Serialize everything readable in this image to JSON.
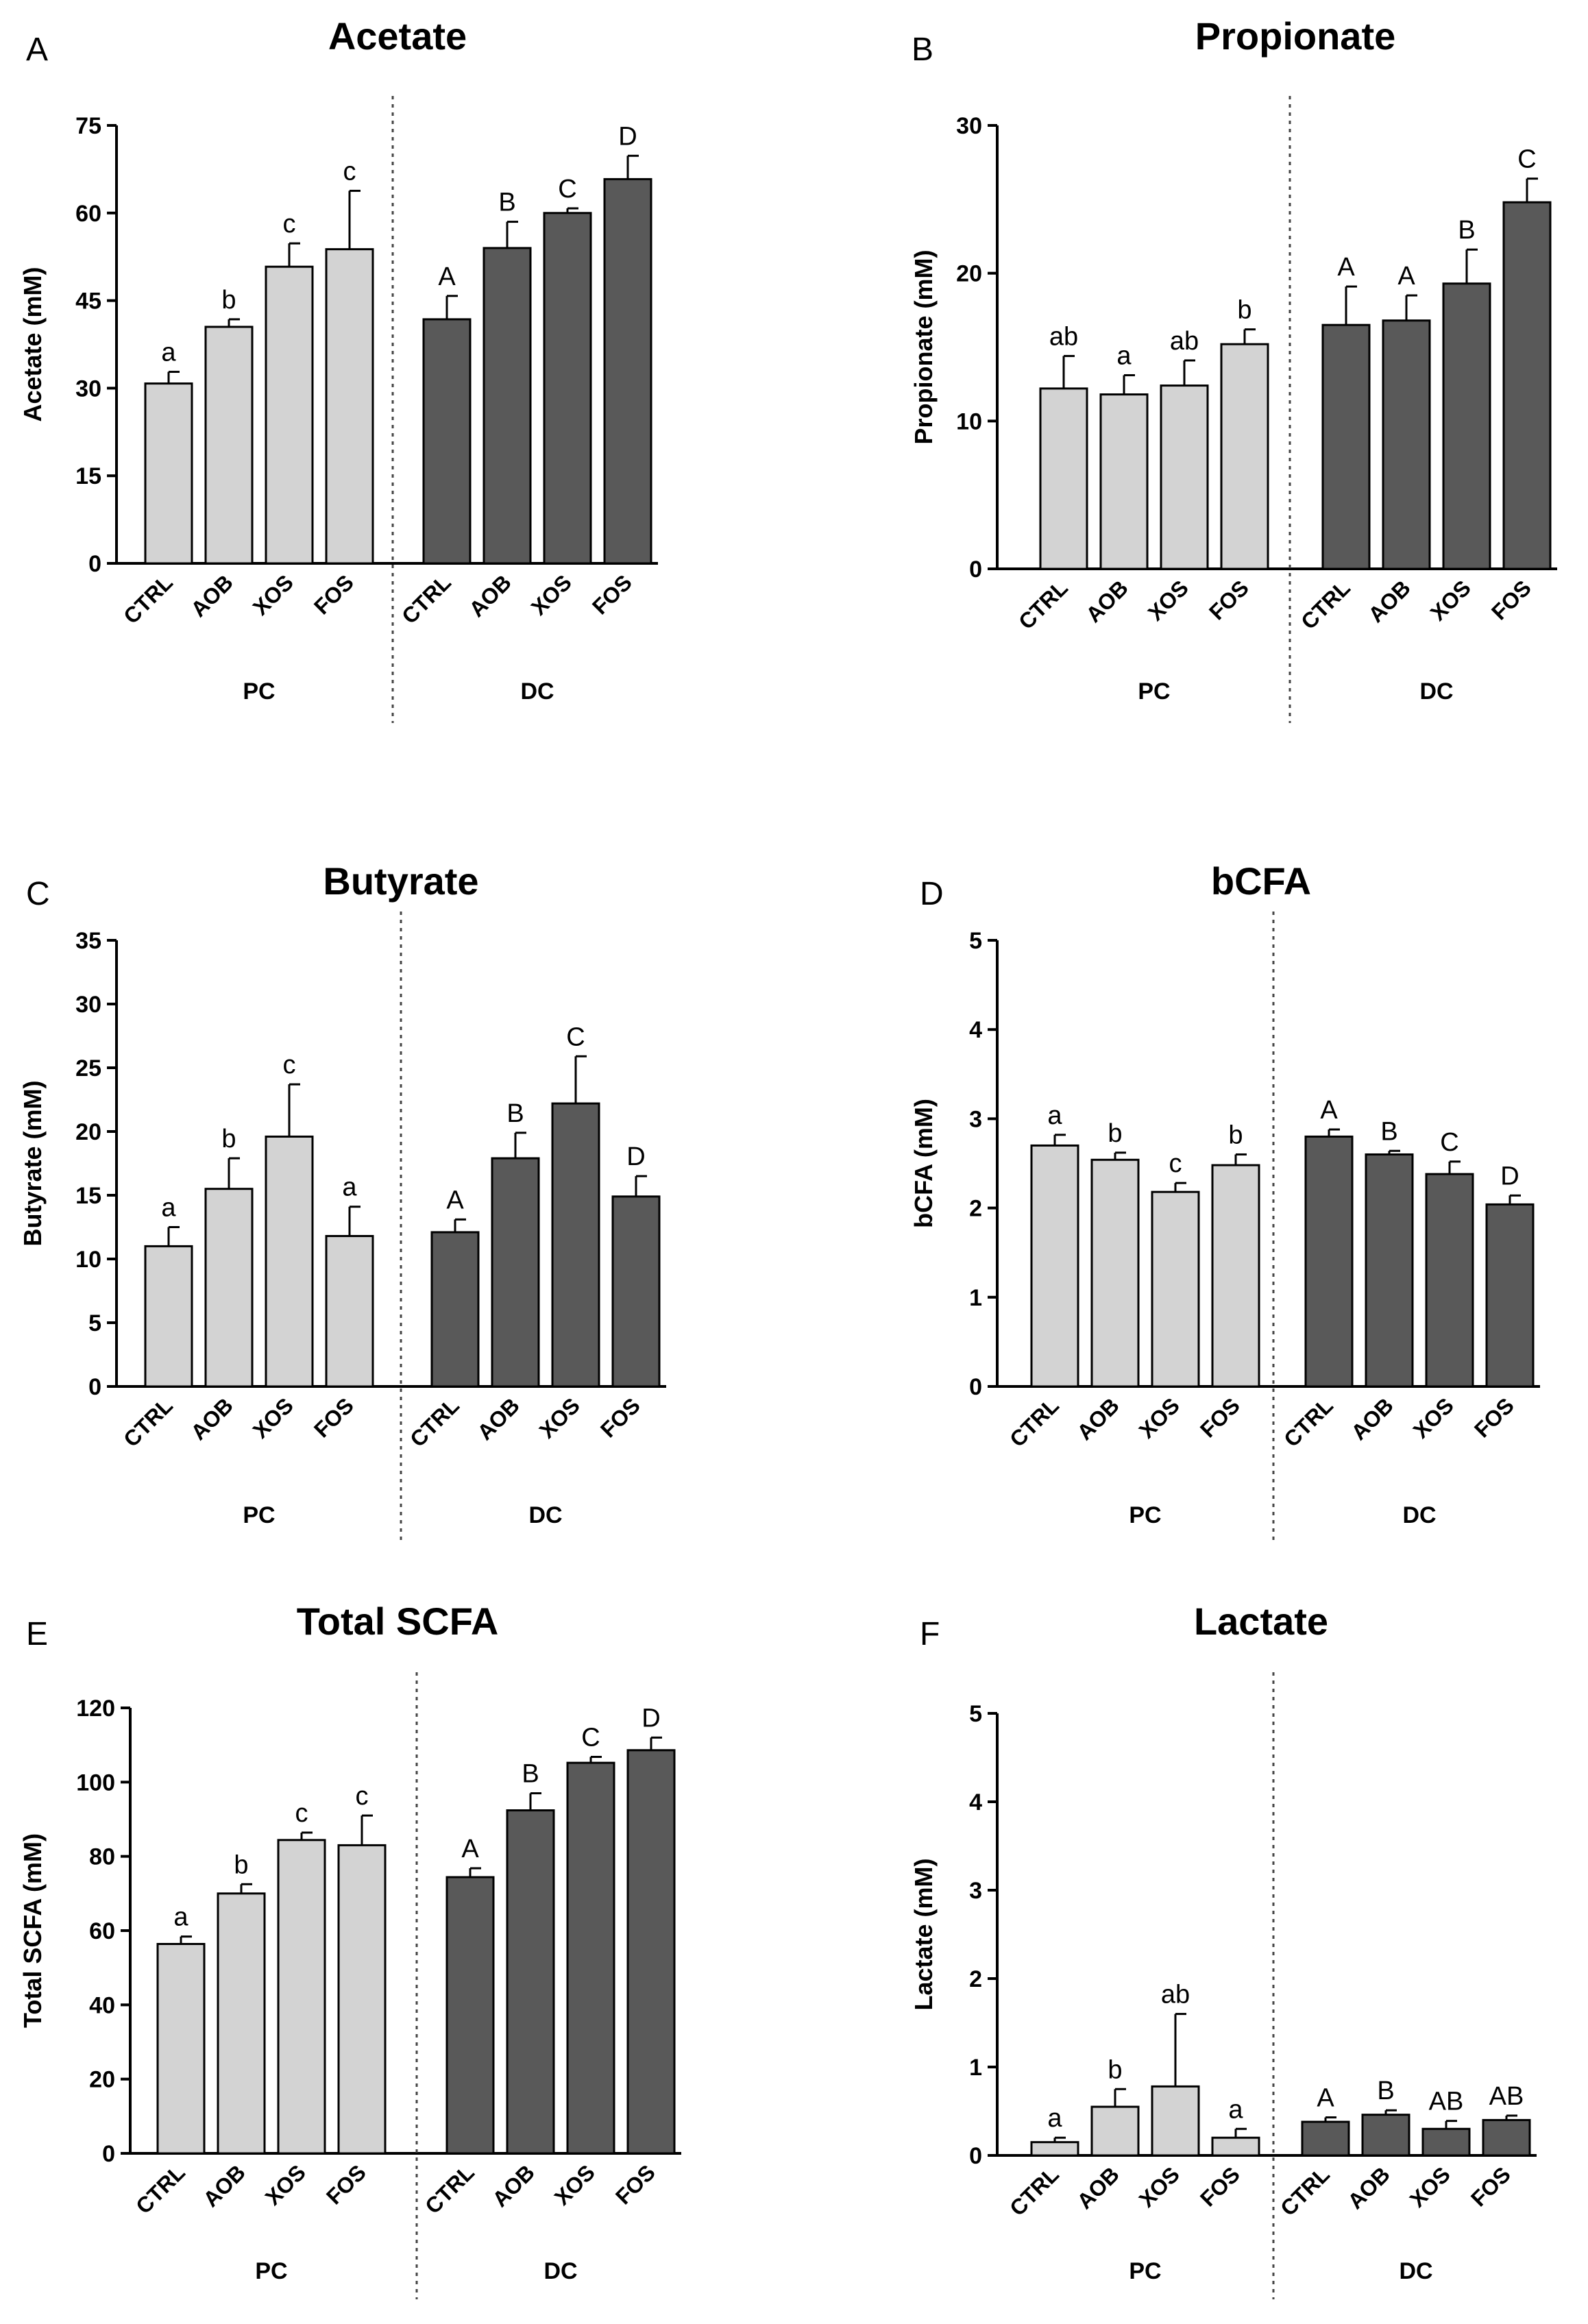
{
  "chart_data": [
    {
      "panel": "A",
      "type": "bar",
      "title": "Acetate",
      "ylabel": "Acetate (mM)",
      "ylim": [
        0,
        75
      ],
      "yticks": [
        0,
        15,
        30,
        45,
        60,
        75
      ],
      "groups": [
        "PC",
        "DC"
      ],
      "categories": [
        "CTRL",
        "AOB",
        "XOS",
        "FOS"
      ],
      "series": [
        {
          "name": "PC",
          "color": "#d3d3d3",
          "values": [
            30.8,
            40.5,
            50.8,
            53.8
          ],
          "errors": [
            2.0,
            1.3,
            4.0,
            10.0
          ],
          "letters": [
            "a",
            "b",
            "c",
            "c"
          ]
        },
        {
          "name": "DC",
          "color": "#595959",
          "values": [
            41.8,
            54.0,
            60.0,
            65.8
          ],
          "errors": [
            4.0,
            4.5,
            0.8,
            4.0
          ],
          "letters": [
            "A",
            "B",
            "C",
            "D"
          ]
        }
      ]
    },
    {
      "panel": "B",
      "type": "bar",
      "title": "Propionate",
      "ylabel": "Propionate (mM)",
      "ylim": [
        0,
        30
      ],
      "yticks": [
        0,
        10,
        20,
        30
      ],
      "groups": [
        "PC",
        "DC"
      ],
      "categories": [
        "CTRL",
        "AOB",
        "XOS",
        "FOS"
      ],
      "series": [
        {
          "name": "PC",
          "color": "#d3d3d3",
          "values": [
            12.2,
            11.8,
            12.4,
            15.2
          ],
          "errors": [
            2.2,
            1.3,
            1.7,
            1.0
          ],
          "letters": [
            "ab",
            "a",
            "ab",
            "b"
          ]
        },
        {
          "name": "DC",
          "color": "#595959",
          "values": [
            16.5,
            16.8,
            19.3,
            24.8
          ],
          "errors": [
            2.6,
            1.7,
            2.3,
            1.6
          ],
          "letters": [
            "A",
            "A",
            "B",
            "C"
          ]
        }
      ]
    },
    {
      "panel": "C",
      "type": "bar",
      "title": "Butyrate",
      "ylabel": "Butyrate (mM)",
      "ylim": [
        0,
        35
      ],
      "yticks": [
        0,
        5,
        10,
        15,
        20,
        25,
        30,
        35
      ],
      "groups": [
        "PC",
        "DC"
      ],
      "categories": [
        "CTRL",
        "AOB",
        "XOS",
        "FOS"
      ],
      "series": [
        {
          "name": "PC",
          "color": "#d3d3d3",
          "values": [
            11.0,
            15.5,
            19.6,
            11.8
          ],
          "errors": [
            1.5,
            2.4,
            4.1,
            2.3
          ],
          "letters": [
            "a",
            "b",
            "c",
            "a"
          ]
        },
        {
          "name": "DC",
          "color": "#595959",
          "values": [
            12.1,
            17.9,
            22.2,
            14.9
          ],
          "errors": [
            1.0,
            2.0,
            3.7,
            1.6
          ],
          "letters": [
            "A",
            "B",
            "C",
            "D"
          ]
        }
      ]
    },
    {
      "panel": "D",
      "type": "bar",
      "title": "bCFA",
      "ylabel": "bCFA (mM)",
      "ylim": [
        0,
        5
      ],
      "yticks": [
        0,
        1,
        2,
        3,
        4,
        5
      ],
      "groups": [
        "PC",
        "DC"
      ],
      "categories": [
        "CTRL",
        "AOB",
        "XOS",
        "FOS"
      ],
      "series": [
        {
          "name": "PC",
          "color": "#d3d3d3",
          "values": [
            2.7,
            2.54,
            2.18,
            2.48
          ],
          "errors": [
            0.12,
            0.08,
            0.1,
            0.12
          ],
          "letters": [
            "a",
            "b",
            "c",
            "b"
          ]
        },
        {
          "name": "DC",
          "color": "#595959",
          "values": [
            2.8,
            2.6,
            2.38,
            2.04
          ],
          "errors": [
            0.08,
            0.04,
            0.14,
            0.1
          ],
          "letters": [
            "A",
            "B",
            "C",
            "D"
          ]
        }
      ]
    },
    {
      "panel": "E",
      "type": "bar",
      "title": "Total SCFA",
      "ylabel": "Total SCFA (mM)",
      "ylim": [
        0,
        120
      ],
      "yticks": [
        0,
        20,
        40,
        60,
        80,
        100,
        120
      ],
      "groups": [
        "PC",
        "DC"
      ],
      "categories": [
        "CTRL",
        "AOB",
        "XOS",
        "FOS"
      ],
      "series": [
        {
          "name": "PC",
          "color": "#d3d3d3",
          "values": [
            56.4,
            70.0,
            84.4,
            83.0
          ],
          "errors": [
            2.0,
            2.5,
            2.0,
            8.0
          ],
          "letters": [
            "a",
            "b",
            "c",
            "c"
          ]
        },
        {
          "name": "DC",
          "color": "#595959",
          "values": [
            74.4,
            92.4,
            105.2,
            108.6
          ],
          "errors": [
            2.4,
            4.6,
            1.6,
            3.4
          ],
          "letters": [
            "A",
            "B",
            "C",
            "D"
          ]
        }
      ]
    },
    {
      "panel": "F",
      "type": "bar",
      "title": "Lactate",
      "ylabel": "Lactate (mM)",
      "ylim": [
        0,
        5
      ],
      "yticks": [
        0,
        1,
        2,
        3,
        4,
        5
      ],
      "groups": [
        "PC",
        "DC"
      ],
      "categories": [
        "CTRL",
        "AOB",
        "XOS",
        "FOS"
      ],
      "series": [
        {
          "name": "PC",
          "color": "#d3d3d3",
          "values": [
            0.15,
            0.55,
            0.78,
            0.2
          ],
          "errors": [
            0.05,
            0.2,
            0.82,
            0.1
          ],
          "letters": [
            "a",
            "b",
            "ab",
            "a"
          ]
        },
        {
          "name": "DC",
          "color": "#595959",
          "values": [
            0.38,
            0.46,
            0.3,
            0.4
          ],
          "errors": [
            0.05,
            0.05,
            0.09,
            0.05
          ],
          "letters": [
            "A",
            "B",
            "AB",
            "AB"
          ]
        }
      ]
    }
  ]
}
